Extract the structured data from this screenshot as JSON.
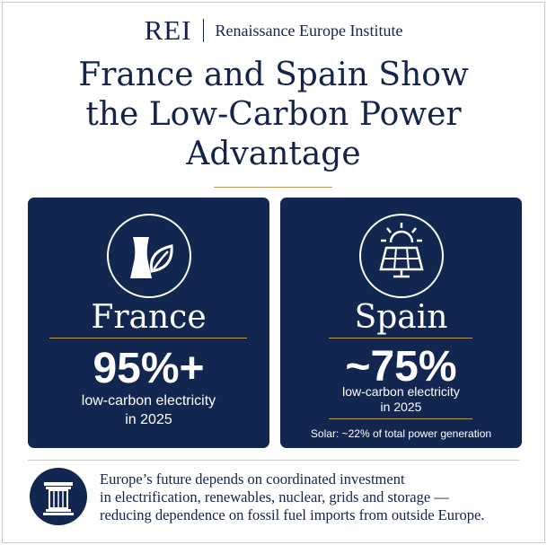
{
  "header": {
    "brand_mark": "REI",
    "brand_name": "Renaissance Europe Institute",
    "title_lines": [
      "France and Spain Show",
      "the Low-Carbon Power",
      "Advantage"
    ]
  },
  "cards": [
    {
      "icon": "nuclear-leaf-icon",
      "country": "France",
      "headline": "95%+",
      "sub_lines": [
        "low-carbon electricity",
        "in 2025"
      ]
    },
    {
      "icon": "solar-panel-icon",
      "country": "Spain",
      "headline": "~75%",
      "sub_lines": [
        "low-carbon electricity",
        "in 2025"
      ],
      "note": "Solar: ~22% of total power generation"
    }
  ],
  "footer": {
    "icon": "pillar-icon",
    "lines": [
      "Europe’s future depends on coordinated investment",
      "in electrification, renewables, nuclear, grids and storage —",
      "reducing dependence on fossil fuel imports from outside Europe."
    ]
  },
  "colors": {
    "navy": "#132650",
    "gold": "#b89a55",
    "text": "#13234a"
  }
}
